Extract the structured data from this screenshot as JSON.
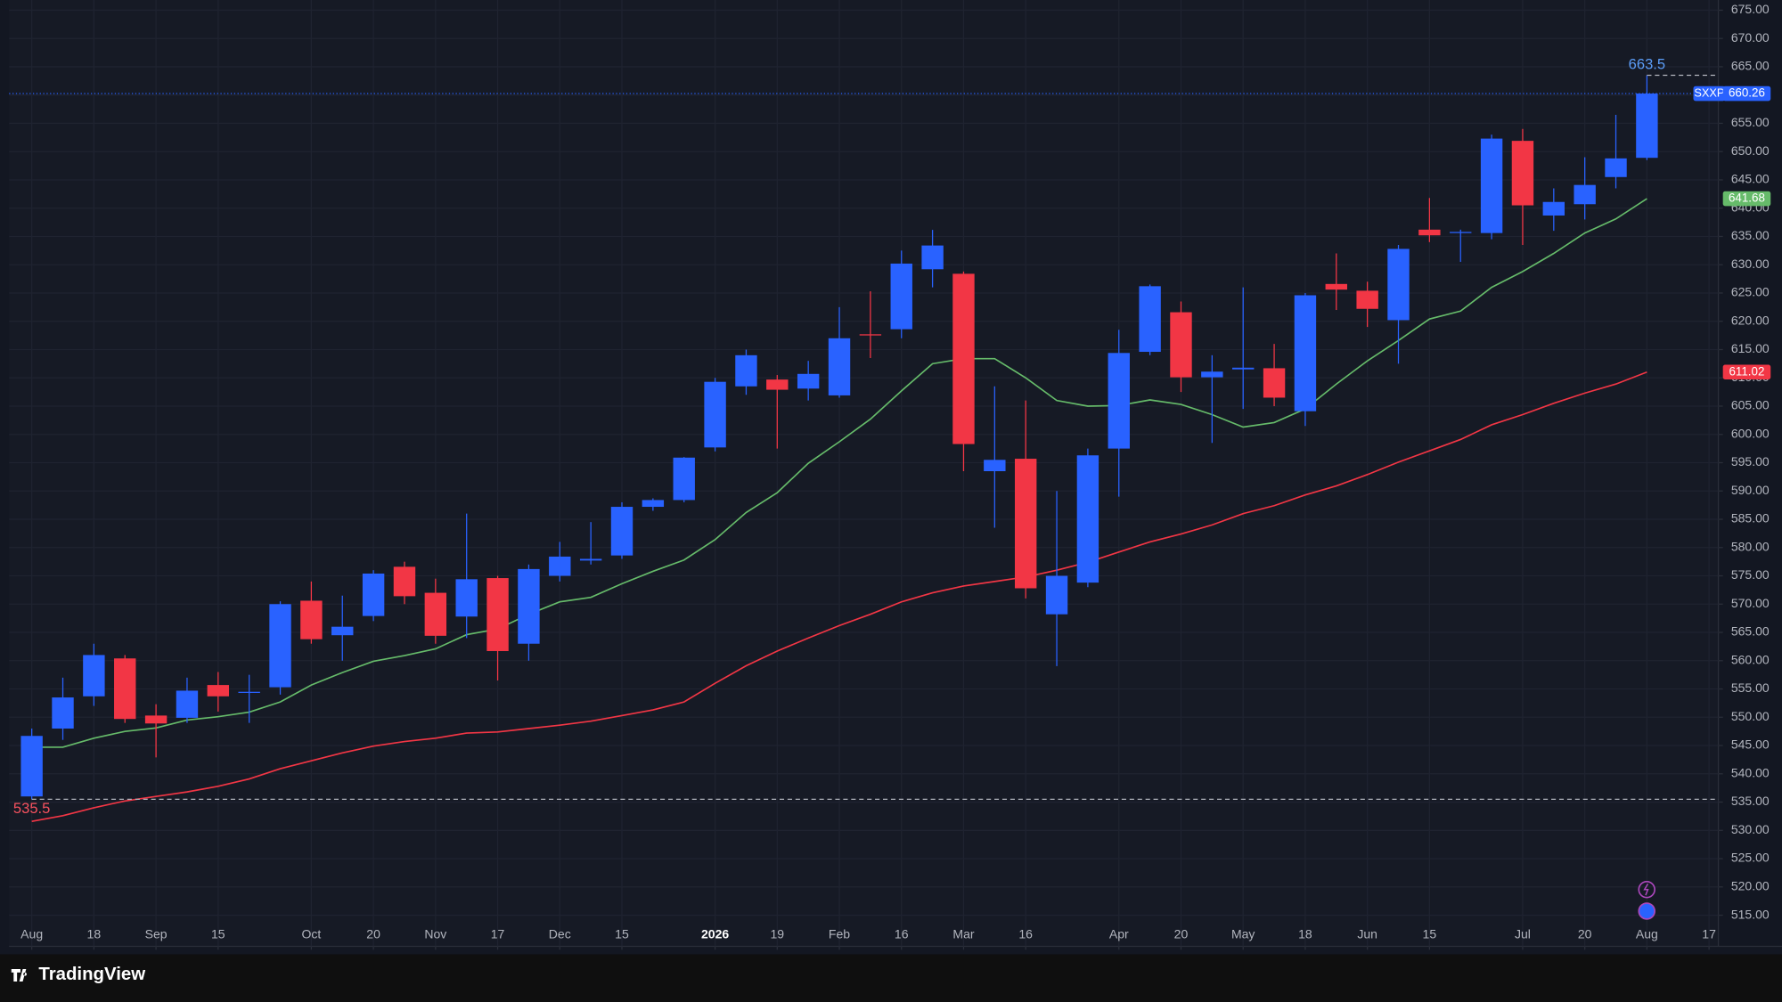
{
  "brand": "TradingView",
  "chart_data": {
    "type": "candlestick",
    "symbol": "SXXP",
    "up_color": "#2962ff",
    "down_color": "#f23645",
    "xlim": [
      -0.73,
      54.3
    ],
    "ylim": [
      509.5,
      676.8
    ],
    "grid": true,
    "xticks": [
      {
        "value": 0,
        "label": "Aug"
      },
      {
        "value": 2,
        "label": "18"
      },
      {
        "value": 4,
        "label": "Sep"
      },
      {
        "value": 6,
        "label": "15"
      },
      {
        "value": 9,
        "label": "Oct"
      },
      {
        "value": 11,
        "label": "20"
      },
      {
        "value": 13,
        "label": "Nov"
      },
      {
        "value": 15,
        "label": "17"
      },
      {
        "value": 17,
        "label": "Dec"
      },
      {
        "value": 19,
        "label": "15"
      },
      {
        "value": 22,
        "label": "2026"
      },
      {
        "value": 24,
        "label": "19"
      },
      {
        "value": 26,
        "label": "Feb"
      },
      {
        "value": 28,
        "label": "16"
      },
      {
        "value": 30,
        "label": "Mar"
      },
      {
        "value": 32,
        "label": "16"
      },
      {
        "value": 35,
        "label": "Apr"
      },
      {
        "value": 37,
        "label": "20"
      },
      {
        "value": 39,
        "label": "May"
      },
      {
        "value": 41,
        "label": "18"
      },
      {
        "value": 43,
        "label": "Jun"
      },
      {
        "value": 45,
        "label": "15"
      },
      {
        "value": 48,
        "label": "Jul"
      },
      {
        "value": 50,
        "label": "20"
      },
      {
        "value": 52,
        "label": "Aug"
      },
      {
        "value": 54,
        "label": "17"
      }
    ],
    "yticks": [
      {
        "value": 515,
        "label": "515.00"
      },
      {
        "value": 520,
        "label": "520.00"
      },
      {
        "value": 525,
        "label": "525.00"
      },
      {
        "value": 530,
        "label": "530.00"
      },
      {
        "value": 535,
        "label": "535.00"
      },
      {
        "value": 540,
        "label": "540.00"
      },
      {
        "value": 545,
        "label": "545.00"
      },
      {
        "value": 550,
        "label": "550.00"
      },
      {
        "value": 555,
        "label": "555.00"
      },
      {
        "value": 560,
        "label": "560.00"
      },
      {
        "value": 565,
        "label": "565.00"
      },
      {
        "value": 570,
        "label": "570.00"
      },
      {
        "value": 575,
        "label": "575.00"
      },
      {
        "value": 580,
        "label": "580.00"
      },
      {
        "value": 585,
        "label": "585.00"
      },
      {
        "value": 590,
        "label": "590.00"
      },
      {
        "value": 595,
        "label": "595.00"
      },
      {
        "value": 600,
        "label": "600.00"
      },
      {
        "value": 605,
        "label": "605.00"
      },
      {
        "value": 610,
        "label": "610.00"
      },
      {
        "value": 615,
        "label": "615.00"
      },
      {
        "value": 620,
        "label": "620.00"
      },
      {
        "value": 625,
        "label": "625.00"
      },
      {
        "value": 630,
        "label": "630.00"
      },
      {
        "value": 635,
        "label": "635.00"
      },
      {
        "value": 640,
        "label": "640.00"
      },
      {
        "value": 645,
        "label": "645.00"
      },
      {
        "value": 650,
        "label": "650.00"
      },
      {
        "value": 655,
        "label": "655.00"
      },
      {
        "value": 660,
        "label": "660.00"
      },
      {
        "value": 665,
        "label": "665.00"
      },
      {
        "value": 670,
        "label": "670.00"
      },
      {
        "value": 675,
        "label": "675.00"
      }
    ],
    "open": [
      536,
      548,
      553.7,
      560.4,
      550.3,
      549.9,
      555.7,
      554.3,
      555.3,
      570.6,
      564.5,
      567.9,
      576.6,
      572,
      567.8,
      574.6,
      563,
      575,
      577.7,
      578.6,
      587.2,
      588.4,
      597.7,
      608.5,
      609.7,
      608.1,
      606.9,
      617.7,
      618.6,
      629.2,
      628.4,
      593.5,
      595.7,
      568.2,
      573.8,
      597.5,
      614.6,
      621.6,
      610.1,
      611.5,
      611.7,
      604.1,
      626.6,
      625.4,
      620.2,
      636.2,
      635.6,
      635.6,
      651.9,
      638.7,
      640.7,
      645.5,
      648.9
    ],
    "high": [
      548,
      557,
      563,
      561,
      552.3,
      557,
      558,
      557.5,
      570.5,
      574,
      571.5,
      576,
      577.5,
      574.5,
      586,
      575,
      577,
      581,
      584.5,
      588,
      588.7,
      596,
      610,
      615,
      610.5,
      613,
      622.5,
      625.3,
      632.5,
      636.16,
      628.8,
      608.5,
      606,
      590,
      597.5,
      618.5,
      626.5,
      623.5,
      614,
      626,
      616,
      625,
      632,
      627,
      633.5,
      641.8,
      636.2,
      653,
      654,
      643.5,
      649,
      656.5,
      663.5
    ],
    "low": [
      535.5,
      546,
      552,
      549,
      542.9,
      549,
      551,
      549,
      554,
      563,
      560,
      567,
      570,
      563,
      564,
      556.5,
      560,
      574,
      577,
      578,
      586.5,
      588,
      597,
      607,
      597.5,
      606,
      606.5,
      613.5,
      617,
      626,
      593.5,
      583.5,
      571,
      559.05,
      573,
      589,
      614,
      607.5,
      598.5,
      604.5,
      605,
      601.5,
      622,
      619,
      612.5,
      634,
      630.5,
      634.5,
      633.5,
      636,
      638,
      643.5,
      648.5
    ],
    "close": [
      546.7,
      553.5,
      561,
      549.7,
      548.9,
      554.7,
      553.7,
      554.5,
      570,
      563.8,
      566,
      575.4,
      571.4,
      564.4,
      574.4,
      561.7,
      576.2,
      578.4,
      578,
      587.2,
      588.4,
      595.9,
      609.3,
      614,
      607.9,
      610.7,
      617,
      617.5,
      630.2,
      633.4,
      598.3,
      595.5,
      572.8,
      575,
      596.3,
      614.4,
      626.2,
      610.1,
      611.1,
      611.8,
      606.5,
      624.6,
      625.6,
      622.2,
      632.8,
      635.2,
      635.8,
      652.3,
      640.5,
      641.1,
      644.1,
      648.8,
      660.26
    ],
    "moving_averages": [
      {
        "color": "#66bb6a",
        "values": [
          544.7,
          544.7,
          546.3,
          547.5,
          548.1,
          549.5,
          550.1,
          550.9,
          552.7,
          555.7,
          557.9,
          559.9,
          560.9,
          562.1,
          564.6,
          565.6,
          568.2,
          570.4,
          571.2,
          573.6,
          575.8,
          577.8,
          581.4,
          586.2,
          589.7,
          594.9,
          598.7,
          602.7,
          607.7,
          612.5,
          613.4,
          613.4,
          610,
          606,
          605,
          605.1,
          606.1,
          605.3,
          603.5,
          601.3,
          602.1,
          604.5,
          608.9,
          613,
          616.6,
          620.4,
          621.8,
          626,
          628.8,
          632,
          635.6,
          638.1,
          641.68
        ]
      },
      {
        "color": "#f23645",
        "values": [
          531.6,
          532.6,
          534,
          535.2,
          536,
          536.8,
          537.8,
          539.1,
          540.9,
          542.3,
          543.7,
          544.9,
          545.7,
          546.3,
          547.2,
          547.4,
          548,
          548.6,
          549.3,
          550.3,
          551.3,
          552.7,
          556,
          559.1,
          561.7,
          564,
          566.2,
          568.2,
          570.4,
          572,
          573.2,
          574,
          574.8,
          576,
          577.4,
          579.2,
          581,
          582.4,
          584,
          586,
          587.4,
          589.3,
          590.9,
          592.9,
          595.1,
          597.1,
          599.1,
          601.7,
          603.5,
          605.5,
          607.3,
          608.9,
          611.02
        ]
      }
    ]
  }
}
